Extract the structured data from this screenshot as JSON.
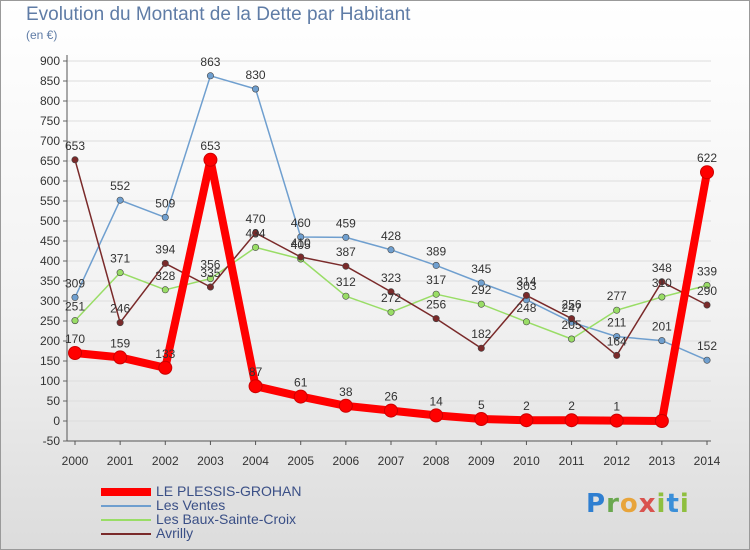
{
  "title": "Evolution du Montant de la Dette par Habitant",
  "unit": "(en €)",
  "logo": "Proxiti",
  "chart_data": {
    "type": "line",
    "x": [
      "2000",
      "2001",
      "2002",
      "2003",
      "2004",
      "2005",
      "2006",
      "2007",
      "2008",
      "2009",
      "2010",
      "2011",
      "2012",
      "2013",
      "2014"
    ],
    "ylim": [
      -50,
      900
    ],
    "yticks": [
      -50,
      0,
      50,
      100,
      150,
      200,
      250,
      300,
      350,
      400,
      450,
      500,
      550,
      600,
      650,
      700,
      750,
      800,
      850,
      900
    ],
    "grid": "horizontal",
    "legend_position": "bottom-left",
    "series": [
      {
        "name": "LE PLESSIS-GROHAN",
        "color": "#ff0000",
        "values": [
          170,
          159,
          133,
          653,
          87,
          61,
          38,
          26,
          14,
          5,
          2,
          2,
          1,
          0,
          622
        ],
        "labels": [
          "170",
          "159",
          "133",
          "653",
          "87",
          "61",
          "38",
          "26",
          "14",
          "5",
          "2",
          "2",
          "1",
          "",
          "622"
        ]
      },
      {
        "name": "Les Ventes",
        "color": "#6f9fcf",
        "values": [
          309,
          552,
          509,
          863,
          830,
          460,
          459,
          428,
          389,
          345,
          303,
          247,
          211,
          201,
          152
        ],
        "labels": [
          "309",
          "552",
          "509",
          "863",
          "830",
          "460",
          "459",
          "428",
          "389",
          "345",
          "303",
          "247",
          "211",
          "201",
          "152"
        ]
      },
      {
        "name": "Les Baux-Sainte-Croix",
        "color": "#99dd66",
        "values": [
          251,
          371,
          328,
          356,
          434,
          405,
          312,
          272,
          317,
          292,
          248,
          205,
          277,
          310,
          339
        ],
        "labels": [
          "251",
          "371",
          "328",
          "356",
          "434",
          "405",
          "312",
          "272",
          "317",
          "292",
          "248",
          "205",
          "277",
          "310",
          "339"
        ]
      },
      {
        "name": "Avrilly",
        "color": "#7a2a2a",
        "values": [
          653,
          246,
          394,
          335,
          470,
          410,
          387,
          323,
          256,
          182,
          314,
          256,
          164,
          348,
          290
        ],
        "labels": [
          "653",
          "246",
          "394",
          "335",
          "470",
          "410",
          "387",
          "323",
          "256",
          "182",
          "314",
          "256",
          "164",
          "348",
          "290"
        ]
      }
    ]
  }
}
